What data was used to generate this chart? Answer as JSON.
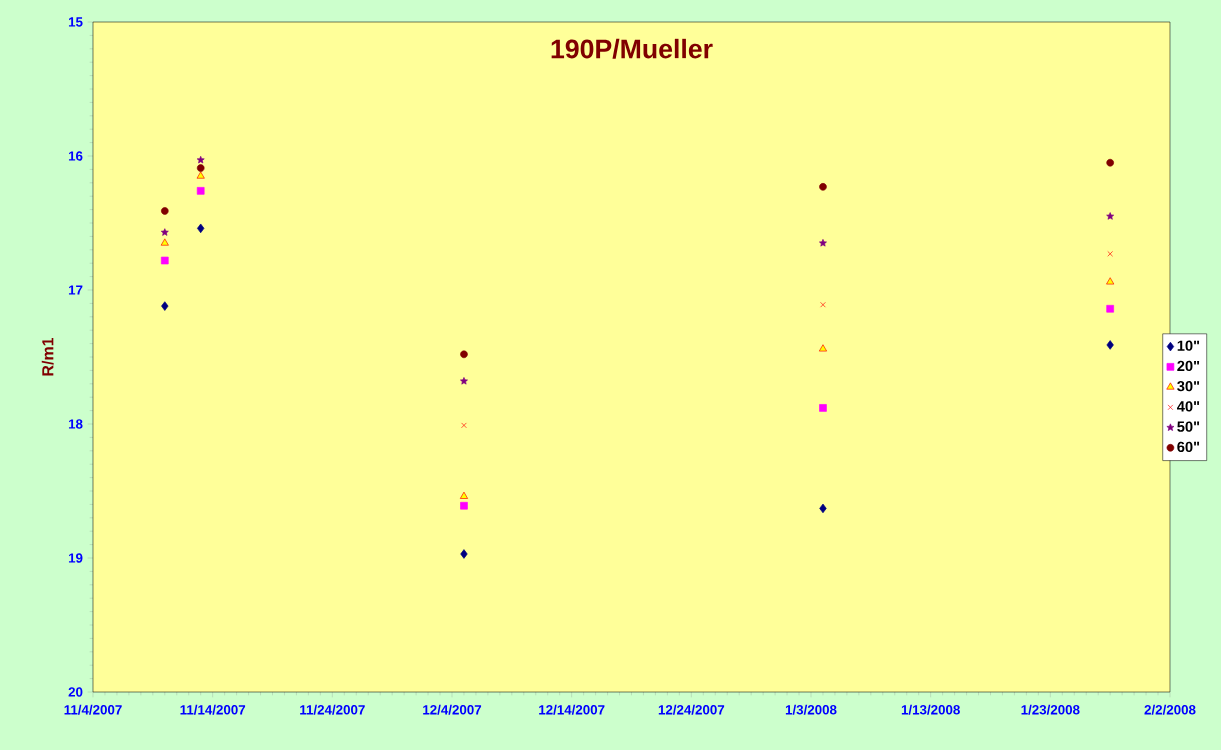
{
  "chart_data": {
    "type": "scatter",
    "title": "190P/Mueller",
    "ylabel": "R/m1",
    "x": [
      "2007-11-10",
      "2007-11-13",
      "2007-12-05",
      "2008-01-04",
      "2008-01-28"
    ],
    "series": [
      {
        "name": "10\"",
        "color": "#000080",
        "marker": "diamond",
        "values": [
          17.12,
          16.54,
          18.97,
          18.63,
          17.41
        ]
      },
      {
        "name": "20\"",
        "color": "#ff00ff",
        "marker": "square",
        "values": [
          16.78,
          16.26,
          18.61,
          17.88,
          17.14
        ]
      },
      {
        "name": "30\"",
        "color": "#ffff00",
        "marker": "triangle",
        "values": [
          16.65,
          16.15,
          18.54,
          17.44,
          16.94
        ]
      },
      {
        "name": "40\"",
        "color": "#ff0000",
        "marker": "cross",
        "values": [
          null,
          null,
          18.01,
          17.11,
          16.73
        ]
      },
      {
        "name": "50\"",
        "color": "#800080",
        "marker": "star",
        "values": [
          16.57,
          16.03,
          17.68,
          16.65,
          16.45
        ]
      },
      {
        "name": "60\"",
        "color": "#800000",
        "marker": "circle",
        "values": [
          16.41,
          16.09,
          17.48,
          16.23,
          16.05
        ]
      }
    ],
    "xlim": [
      "2007-11-04",
      "2008-02-02"
    ],
    "xticks": [
      {
        "value": "2007-11-04",
        "label": "11/4/2007"
      },
      {
        "value": "2007-11-14",
        "label": "11/14/2007"
      },
      {
        "value": "2007-11-24",
        "label": "11/24/2007"
      },
      {
        "value": "2007-12-04",
        "label": "12/4/2007"
      },
      {
        "value": "2007-12-14",
        "label": "12/14/2007"
      },
      {
        "value": "2007-12-24",
        "label": "12/24/2007"
      },
      {
        "value": "2008-01-03",
        "label": "1/3/2008"
      },
      {
        "value": "2008-01-13",
        "label": "1/13/2008"
      },
      {
        "value": "2008-01-23",
        "label": "1/23/2008"
      },
      {
        "value": "2008-02-02",
        "label": "2/2/2008"
      }
    ],
    "ylim": [
      20,
      15
    ],
    "yticks": [
      15,
      16,
      17,
      18,
      19,
      20
    ],
    "legend": "right",
    "grid": false
  }
}
